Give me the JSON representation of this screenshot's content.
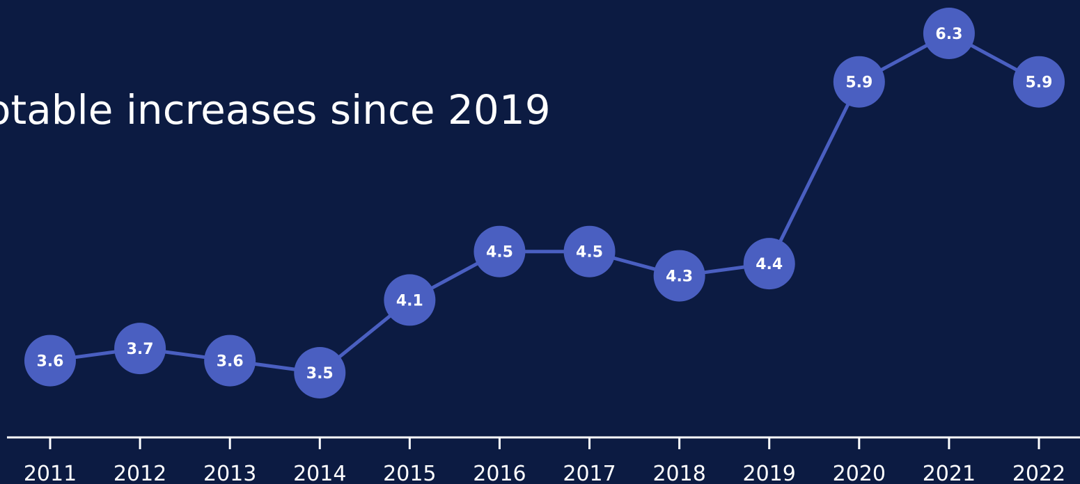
{
  "title": "otable increases since 2019",
  "chart_data": {
    "type": "line",
    "title": "otable increases since 2019",
    "categories": [
      "2011",
      "2012",
      "2013",
      "2014",
      "2015",
      "2016",
      "2017",
      "2018",
      "2019",
      "2020",
      "2021",
      "2022"
    ],
    "series": [
      {
        "values": [
          3.6,
          3.7,
          3.6,
          3.5,
          4.1,
          4.5,
          4.5,
          4.3,
          4.4,
          5.9,
          6.3,
          5.9
        ],
        "labels": [
          "3.6",
          "3.7",
          "3.6",
          "3.5",
          "4.1",
          "4.5",
          "4.5",
          "4.3",
          "4.4",
          "5.9",
          "6.3",
          "5.9"
        ]
      }
    ],
    "xlabel": "",
    "ylabel": "",
    "grid": false,
    "legend": "none",
    "colors": {
      "background": "#0c1b42",
      "line": "#4a5fc1",
      "marker": "#4a5fc1",
      "axis": "#ffffff",
      "text": "#ffffff"
    }
  }
}
